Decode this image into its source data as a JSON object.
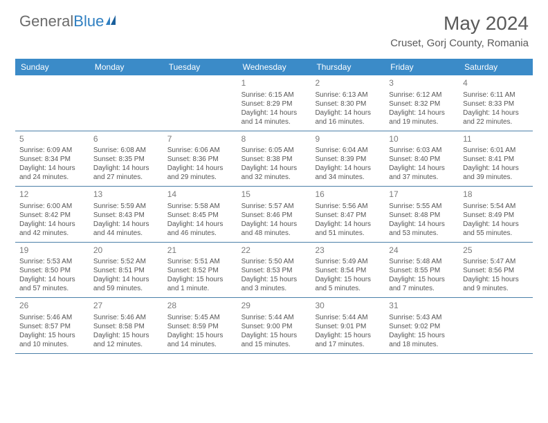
{
  "brand": {
    "part1": "General",
    "part2": "Blue"
  },
  "title": "May 2024",
  "location": "Cruset, Gorj County, Romania",
  "theme": {
    "header_bg": "#3b8bc8",
    "border": "#4a7fa8",
    "text": "#555",
    "brand_gray": "#6b6b6b",
    "brand_blue": "#2f7fc1"
  },
  "dayNames": [
    "Sunday",
    "Monday",
    "Tuesday",
    "Wednesday",
    "Thursday",
    "Friday",
    "Saturday"
  ],
  "weeks": [
    [
      {
        "n": "",
        "sunrise": "",
        "sunset": "",
        "daylight": ""
      },
      {
        "n": "",
        "sunrise": "",
        "sunset": "",
        "daylight": ""
      },
      {
        "n": "",
        "sunrise": "",
        "sunset": "",
        "daylight": ""
      },
      {
        "n": "1",
        "sunrise": "Sunrise: 6:15 AM",
        "sunset": "Sunset: 8:29 PM",
        "daylight": "Daylight: 14 hours and 14 minutes."
      },
      {
        "n": "2",
        "sunrise": "Sunrise: 6:13 AM",
        "sunset": "Sunset: 8:30 PM",
        "daylight": "Daylight: 14 hours and 16 minutes."
      },
      {
        "n": "3",
        "sunrise": "Sunrise: 6:12 AM",
        "sunset": "Sunset: 8:32 PM",
        "daylight": "Daylight: 14 hours and 19 minutes."
      },
      {
        "n": "4",
        "sunrise": "Sunrise: 6:11 AM",
        "sunset": "Sunset: 8:33 PM",
        "daylight": "Daylight: 14 hours and 22 minutes."
      }
    ],
    [
      {
        "n": "5",
        "sunrise": "Sunrise: 6:09 AM",
        "sunset": "Sunset: 8:34 PM",
        "daylight": "Daylight: 14 hours and 24 minutes."
      },
      {
        "n": "6",
        "sunrise": "Sunrise: 6:08 AM",
        "sunset": "Sunset: 8:35 PM",
        "daylight": "Daylight: 14 hours and 27 minutes."
      },
      {
        "n": "7",
        "sunrise": "Sunrise: 6:06 AM",
        "sunset": "Sunset: 8:36 PM",
        "daylight": "Daylight: 14 hours and 29 minutes."
      },
      {
        "n": "8",
        "sunrise": "Sunrise: 6:05 AM",
        "sunset": "Sunset: 8:38 PM",
        "daylight": "Daylight: 14 hours and 32 minutes."
      },
      {
        "n": "9",
        "sunrise": "Sunrise: 6:04 AM",
        "sunset": "Sunset: 8:39 PM",
        "daylight": "Daylight: 14 hours and 34 minutes."
      },
      {
        "n": "10",
        "sunrise": "Sunrise: 6:03 AM",
        "sunset": "Sunset: 8:40 PM",
        "daylight": "Daylight: 14 hours and 37 minutes."
      },
      {
        "n": "11",
        "sunrise": "Sunrise: 6:01 AM",
        "sunset": "Sunset: 8:41 PM",
        "daylight": "Daylight: 14 hours and 39 minutes."
      }
    ],
    [
      {
        "n": "12",
        "sunrise": "Sunrise: 6:00 AM",
        "sunset": "Sunset: 8:42 PM",
        "daylight": "Daylight: 14 hours and 42 minutes."
      },
      {
        "n": "13",
        "sunrise": "Sunrise: 5:59 AM",
        "sunset": "Sunset: 8:43 PM",
        "daylight": "Daylight: 14 hours and 44 minutes."
      },
      {
        "n": "14",
        "sunrise": "Sunrise: 5:58 AM",
        "sunset": "Sunset: 8:45 PM",
        "daylight": "Daylight: 14 hours and 46 minutes."
      },
      {
        "n": "15",
        "sunrise": "Sunrise: 5:57 AM",
        "sunset": "Sunset: 8:46 PM",
        "daylight": "Daylight: 14 hours and 48 minutes."
      },
      {
        "n": "16",
        "sunrise": "Sunrise: 5:56 AM",
        "sunset": "Sunset: 8:47 PM",
        "daylight": "Daylight: 14 hours and 51 minutes."
      },
      {
        "n": "17",
        "sunrise": "Sunrise: 5:55 AM",
        "sunset": "Sunset: 8:48 PM",
        "daylight": "Daylight: 14 hours and 53 minutes."
      },
      {
        "n": "18",
        "sunrise": "Sunrise: 5:54 AM",
        "sunset": "Sunset: 8:49 PM",
        "daylight": "Daylight: 14 hours and 55 minutes."
      }
    ],
    [
      {
        "n": "19",
        "sunrise": "Sunrise: 5:53 AM",
        "sunset": "Sunset: 8:50 PM",
        "daylight": "Daylight: 14 hours and 57 minutes."
      },
      {
        "n": "20",
        "sunrise": "Sunrise: 5:52 AM",
        "sunset": "Sunset: 8:51 PM",
        "daylight": "Daylight: 14 hours and 59 minutes."
      },
      {
        "n": "21",
        "sunrise": "Sunrise: 5:51 AM",
        "sunset": "Sunset: 8:52 PM",
        "daylight": "Daylight: 15 hours and 1 minute."
      },
      {
        "n": "22",
        "sunrise": "Sunrise: 5:50 AM",
        "sunset": "Sunset: 8:53 PM",
        "daylight": "Daylight: 15 hours and 3 minutes."
      },
      {
        "n": "23",
        "sunrise": "Sunrise: 5:49 AM",
        "sunset": "Sunset: 8:54 PM",
        "daylight": "Daylight: 15 hours and 5 minutes."
      },
      {
        "n": "24",
        "sunrise": "Sunrise: 5:48 AM",
        "sunset": "Sunset: 8:55 PM",
        "daylight": "Daylight: 15 hours and 7 minutes."
      },
      {
        "n": "25",
        "sunrise": "Sunrise: 5:47 AM",
        "sunset": "Sunset: 8:56 PM",
        "daylight": "Daylight: 15 hours and 9 minutes."
      }
    ],
    [
      {
        "n": "26",
        "sunrise": "Sunrise: 5:46 AM",
        "sunset": "Sunset: 8:57 PM",
        "daylight": "Daylight: 15 hours and 10 minutes."
      },
      {
        "n": "27",
        "sunrise": "Sunrise: 5:46 AM",
        "sunset": "Sunset: 8:58 PM",
        "daylight": "Daylight: 15 hours and 12 minutes."
      },
      {
        "n": "28",
        "sunrise": "Sunrise: 5:45 AM",
        "sunset": "Sunset: 8:59 PM",
        "daylight": "Daylight: 15 hours and 14 minutes."
      },
      {
        "n": "29",
        "sunrise": "Sunrise: 5:44 AM",
        "sunset": "Sunset: 9:00 PM",
        "daylight": "Daylight: 15 hours and 15 minutes."
      },
      {
        "n": "30",
        "sunrise": "Sunrise: 5:44 AM",
        "sunset": "Sunset: 9:01 PM",
        "daylight": "Daylight: 15 hours and 17 minutes."
      },
      {
        "n": "31",
        "sunrise": "Sunrise: 5:43 AM",
        "sunset": "Sunset: 9:02 PM",
        "daylight": "Daylight: 15 hours and 18 minutes."
      },
      {
        "n": "",
        "sunrise": "",
        "sunset": "",
        "daylight": ""
      }
    ]
  ]
}
